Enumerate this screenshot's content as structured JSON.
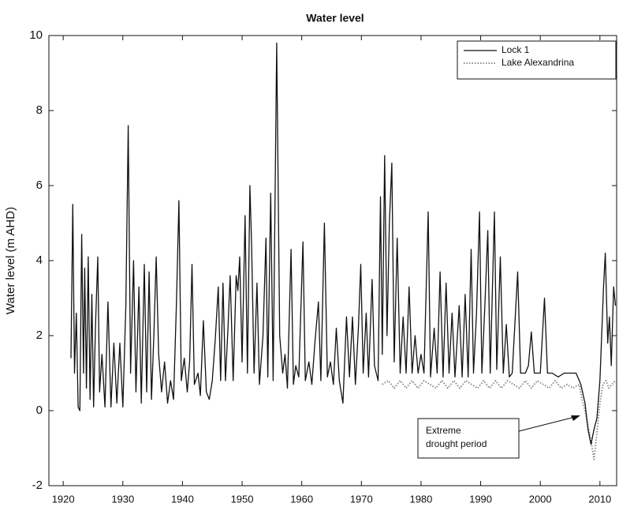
{
  "chart_data": {
    "type": "line",
    "title": "Water level",
    "ylabel": "Water level (m AHD)",
    "xlim": [
      1917.6,
      2012.8
    ],
    "xticks": [
      1920,
      1930,
      1940,
      1950,
      1960,
      1970,
      1980,
      1990,
      2000,
      2010
    ],
    "ylim": [
      -2,
      10
    ],
    "yticks": [
      -2,
      0,
      2,
      4,
      6,
      8,
      10
    ],
    "grid": false,
    "legend": "upper right",
    "annotation": [
      "Extreme",
      "drought period"
    ],
    "series": [
      {
        "name": "Lock 1",
        "color": "#111111",
        "style": "solid",
        "x": [
          1921.3,
          1921.6,
          1921.9,
          1922.2,
          1922.5,
          1922.8,
          1923.1,
          1923.4,
          1923.6,
          1923.9,
          1924.2,
          1924.5,
          1924.8,
          1925.1,
          1925.4,
          1925.8,
          1926.1,
          1926.5,
          1927.0,
          1927.5,
          1928.0,
          1928.5,
          1929.0,
          1929.5,
          1930.0,
          1930.5,
          1930.9,
          1931.3,
          1931.8,
          1932.2,
          1932.7,
          1933.1,
          1933.6,
          1934.0,
          1934.4,
          1934.8,
          1935.2,
          1935.6,
          1936.0,
          1936.5,
          1937.0,
          1937.5,
          1938.0,
          1938.5,
          1939.0,
          1939.4,
          1939.8,
          1940.3,
          1940.8,
          1941.2,
          1941.6,
          1942.0,
          1942.6,
          1943.0,
          1943.5,
          1944.0,
          1944.5,
          1945.0,
          1945.5,
          1946.0,
          1946.4,
          1946.8,
          1947.2,
          1947.6,
          1948.0,
          1948.5,
          1949.0,
          1949.3,
          1949.6,
          1950.0,
          1950.5,
          1950.9,
          1951.3,
          1951.6,
          1952.0,
          1952.5,
          1952.9,
          1953.5,
          1954.0,
          1954.3,
          1954.8,
          1955.2,
          1955.8,
          1956.3,
          1956.8,
          1957.2,
          1957.6,
          1958.2,
          1958.6,
          1959.0,
          1959.5,
          1960.2,
          1960.6,
          1961.2,
          1961.7,
          1962.2,
          1962.8,
          1963.2,
          1963.8,
          1964.3,
          1964.8,
          1965.3,
          1965.8,
          1966.3,
          1966.9,
          1967.5,
          1968.0,
          1968.5,
          1969.0,
          1969.5,
          1969.9,
          1970.3,
          1970.8,
          1971.2,
          1971.8,
          1972.2,
          1972.8,
          1973.2,
          1973.5,
          1973.9,
          1974.3,
          1974.7,
          1975.1,
          1975.5,
          1976.0,
          1976.5,
          1977.0,
          1977.5,
          1978.0,
          1978.5,
          1979.0,
          1979.5,
          1980.0,
          1980.5,
          1981.2,
          1981.6,
          1982.2,
          1982.7,
          1983.2,
          1983.7,
          1984.2,
          1984.7,
          1985.2,
          1985.7,
          1986.4,
          1986.9,
          1987.4,
          1987.9,
          1988.4,
          1988.8,
          1989.3,
          1989.8,
          1990.2,
          1990.7,
          1991.2,
          1991.6,
          1992.3,
          1992.7,
          1993.3,
          1993.8,
          1994.3,
          1994.8,
          1995.3,
          1996.2,
          1996.7,
          1997.5,
          1998.0,
          1998.5,
          1999.0,
          1999.5,
          2000.0,
          2000.7,
          2001.2,
          2002.0,
          2003.0,
          2004.0,
          2005.0,
          2006.0,
          2006.8,
          2007.5,
          2008.0,
          2008.5,
          2009.0,
          2009.5,
          2010.0,
          2010.6,
          2010.9,
          2011.3,
          2011.6,
          2011.9,
          2012.3,
          2012.6
        ],
        "values": [
          1.4,
          5.5,
          1.0,
          2.6,
          0.1,
          0.0,
          4.7,
          1.0,
          3.8,
          0.6,
          4.1,
          0.3,
          3.1,
          0.1,
          2.2,
          4.1,
          0.5,
          1.5,
          0.1,
          2.9,
          0.1,
          1.8,
          0.2,
          1.8,
          0.1,
          2.8,
          7.6,
          1.0,
          4.0,
          0.5,
          3.3,
          0.2,
          3.9,
          0.5,
          3.7,
          0.3,
          2.0,
          4.1,
          1.5,
          0.5,
          1.3,
          0.2,
          0.8,
          0.3,
          2.9,
          5.6,
          0.8,
          1.4,
          0.5,
          1.3,
          3.9,
          0.7,
          1.0,
          0.4,
          2.4,
          0.5,
          0.3,
          0.8,
          1.9,
          3.3,
          0.8,
          3.4,
          0.8,
          2.1,
          3.6,
          0.8,
          3.6,
          3.2,
          4.1,
          1.3,
          5.2,
          1.0,
          6.0,
          4.4,
          1.0,
          3.4,
          0.7,
          2.0,
          4.6,
          0.9,
          5.8,
          0.8,
          9.8,
          2.0,
          1.0,
          1.5,
          0.6,
          4.3,
          0.7,
          1.2,
          0.9,
          4.5,
          0.8,
          1.3,
          0.7,
          1.8,
          2.9,
          0.8,
          5.0,
          0.9,
          1.3,
          0.7,
          2.2,
          0.8,
          0.2,
          2.5,
          0.9,
          2.5,
          0.7,
          2.2,
          3.9,
          1.0,
          2.6,
          0.9,
          3.5,
          1.2,
          0.8,
          5.7,
          1.5,
          6.8,
          2.0,
          5.0,
          6.6,
          1.3,
          4.6,
          1.0,
          2.5,
          1.0,
          3.3,
          1.0,
          2.0,
          1.0,
          1.5,
          1.0,
          5.3,
          0.9,
          2.2,
          1.0,
          3.7,
          0.9,
          3.4,
          1.0,
          2.6,
          0.9,
          2.8,
          0.9,
          3.1,
          0.9,
          4.3,
          1.0,
          2.6,
          5.3,
          1.0,
          2.8,
          4.8,
          1.0,
          5.3,
          1.1,
          4.1,
          1.0,
          2.3,
          0.9,
          1.0,
          3.7,
          1.0,
          1.0,
          1.2,
          2.1,
          1.0,
          1.0,
          1.0,
          3.0,
          1.0,
          1.0,
          0.9,
          1.0,
          1.0,
          1.0,
          0.7,
          0.2,
          -0.5,
          -0.9,
          -0.5,
          -0.2,
          0.8,
          3.3,
          4.2,
          1.8,
          2.5,
          1.2,
          3.3,
          2.8
        ]
      },
      {
        "name": "Lake Alexandrina",
        "color": "#8c8c8c",
        "style": "dotted",
        "x": [
          1973.5,
          1974.5,
          1975.5,
          1976.5,
          1977.5,
          1978.5,
          1979.5,
          1980.5,
          1981.5,
          1982.5,
          1983.5,
          1984.5,
          1985.5,
          1986.5,
          1987.5,
          1988.5,
          1989.5,
          1990.5,
          1991.5,
          1992.5,
          1993.5,
          1994.5,
          1995.5,
          1996.5,
          1997.5,
          1998.5,
          1999.5,
          2000.5,
          2001.5,
          2002.5,
          2003.5,
          2004.5,
          2005.5,
          2006.5,
          2007.0,
          2007.5,
          2008.0,
          2008.5,
          2009.0,
          2009.5,
          2010.0,
          2010.5,
          2011.0,
          2011.5,
          2012.0,
          2012.6
        ],
        "values": [
          0.7,
          0.8,
          0.6,
          0.8,
          0.6,
          0.8,
          0.6,
          0.8,
          0.7,
          0.6,
          0.8,
          0.6,
          0.8,
          0.6,
          0.8,
          0.7,
          0.6,
          0.8,
          0.6,
          0.8,
          0.6,
          0.8,
          0.7,
          0.6,
          0.8,
          0.6,
          0.8,
          0.7,
          0.6,
          0.8,
          0.6,
          0.7,
          0.6,
          0.7,
          0.3,
          0.0,
          -0.4,
          -0.8,
          -1.3,
          -0.6,
          0.2,
          0.7,
          0.8,
          0.6,
          0.7,
          0.8
        ]
      }
    ]
  }
}
